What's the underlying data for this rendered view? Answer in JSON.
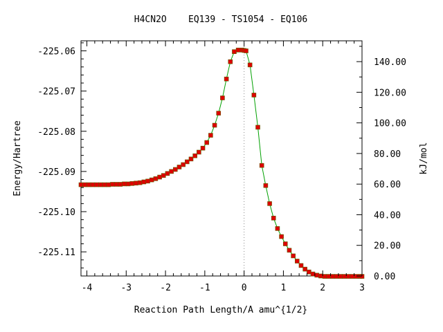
{
  "chart_data": {
    "type": "line",
    "title": "H4CN2O    EQ139 - TS1054 - EQ106",
    "xlabel": "Reaction Path Length/A amu^{1/2}",
    "ylabel": "Energy/Hartree",
    "y2label": "kJ/mol",
    "xlim": [
      -4.15,
      3.0
    ],
    "ylim": [
      -225.116,
      -225.0575
    ],
    "y2lim": [
      0.0,
      153.6
    ],
    "x_ticks": [
      -4,
      -3,
      -2,
      -1,
      0,
      1,
      2,
      3
    ],
    "x_tick_labels": [
      "-4",
      "-3",
      "-2",
      "-1",
      "0",
      "1",
      "2",
      "3"
    ],
    "y_ticks": [
      -225.06,
      -225.07,
      -225.08,
      -225.09,
      -225.1,
      -225.11
    ],
    "y_tick_labels": [
      "-225.06",
      "-225.07",
      "-225.08",
      "-225.09",
      "-225.10",
      "-225.11"
    ],
    "y2_ticks": [
      140,
      120,
      100,
      80,
      60,
      40,
      20,
      0
    ],
    "y2_tick_labels": [
      "140.00",
      "120.00",
      "100.00",
      "80.00",
      "60.00",
      "40.00",
      "20.00",
      "0.00"
    ],
    "ts_marker_x": 0.0,
    "line_color": "#00a000",
    "marker_color": "#dd0000",
    "marker_edge_color": "#606000",
    "series": [
      {
        "x": [
          -4.15,
          -4.05,
          -3.95,
          -3.85,
          -3.75,
          -3.65,
          -3.55,
          -3.45,
          -3.35,
          -3.25,
          -3.15,
          -3.05,
          -2.95,
          -2.85,
          -2.75,
          -2.65,
          -2.55,
          -2.45,
          -2.35,
          -2.25,
          -2.15,
          -2.05,
          -1.95,
          -1.85,
          -1.75,
          -1.65,
          -1.55,
          -1.45,
          -1.35,
          -1.25,
          -1.15,
          -1.05,
          -0.95,
          -0.85,
          -0.75,
          -0.65,
          -0.55,
          -0.45,
          -0.35,
          -0.25,
          -0.15,
          -0.05,
          0.0,
          0.05,
          0.15,
          0.25,
          0.35,
          0.45,
          0.55,
          0.65,
          0.75,
          0.85,
          0.95,
          1.05,
          1.15,
          1.25,
          1.35,
          1.45,
          1.55,
          1.65,
          1.75,
          1.85,
          1.95,
          2.05,
          2.15,
          2.25,
          2.35,
          2.45,
          2.55,
          2.65,
          2.75,
          2.85,
          2.95,
          3.0
        ],
        "y": [
          -225.0933,
          -225.0933,
          -225.0933,
          -225.0933,
          -225.0933,
          -225.0933,
          -225.0933,
          -225.0933,
          -225.0932,
          -225.0932,
          -225.0932,
          -225.0931,
          -225.0931,
          -225.093,
          -225.0929,
          -225.0928,
          -225.0926,
          -225.0924,
          -225.0921,
          -225.0918,
          -225.0914,
          -225.091,
          -225.0905,
          -225.09,
          -225.0895,
          -225.0889,
          -225.0883,
          -225.0876,
          -225.0869,
          -225.0861,
          -225.0852,
          -225.0842,
          -225.0828,
          -225.081,
          -225.0785,
          -225.0755,
          -225.0717,
          -225.067,
          -225.0627,
          -225.0602,
          -225.0598,
          -225.0598,
          -225.0599,
          -225.06,
          -225.0635,
          -225.071,
          -225.079,
          -225.0885,
          -225.0935,
          -225.098,
          -225.1016,
          -225.1042,
          -225.1062,
          -225.108,
          -225.1096,
          -225.111,
          -225.1123,
          -225.1134,
          -225.1143,
          -225.115,
          -225.1155,
          -225.1158,
          -225.116,
          -225.1161,
          -225.1161,
          -225.1161,
          -225.1161,
          -225.1161,
          -225.1161,
          -225.1161,
          -225.1161,
          -225.1161,
          -225.1161,
          -225.1161
        ]
      }
    ]
  }
}
